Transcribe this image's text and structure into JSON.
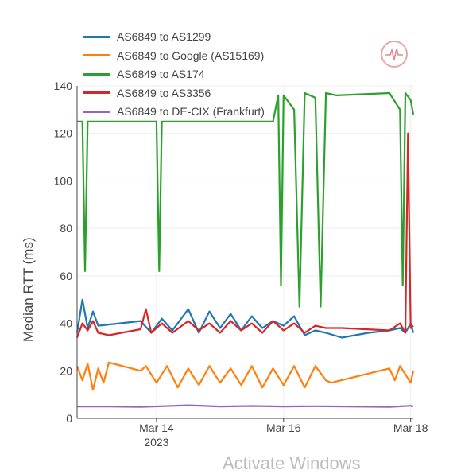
{
  "chart_data": {
    "type": "line",
    "title": "",
    "xlabel": "",
    "ylabel": "Median RTT (ms)",
    "ylim": [
      0,
      140
    ],
    "y_ticks": [
      0,
      20,
      40,
      60,
      80,
      100,
      120,
      140
    ],
    "x_range": [
      "2023-03-12T18:00",
      "2023-03-18T01:00"
    ],
    "x_ticks": [
      {
        "date": "2023-03-14",
        "label": "Mar 14",
        "sublabel": "2023"
      },
      {
        "date": "2023-03-16",
        "label": "Mar 16",
        "sublabel": ""
      },
      {
        "date": "2023-03-18",
        "label": "Mar 18",
        "sublabel": ""
      }
    ],
    "grid": true,
    "legend_position": "top-left",
    "series": [
      {
        "name": "AS6849 to AS1299",
        "color": "#1f77b4",
        "points": [
          [
            "2023-03-12T18:00",
            36
          ],
          [
            "2023-03-12T20:00",
            50
          ],
          [
            "2023-03-12T22:00",
            38
          ],
          [
            "2023-03-13T00:00",
            45
          ],
          [
            "2023-03-13T02:00",
            39
          ],
          [
            "2023-03-13T06:00",
            39.5
          ],
          [
            "2023-03-13T18:00",
            41
          ],
          [
            "2023-03-13T22:00",
            36
          ],
          [
            "2023-03-14T02:00",
            42
          ],
          [
            "2023-03-14T06:00",
            37
          ],
          [
            "2023-03-14T12:00",
            46
          ],
          [
            "2023-03-14T16:00",
            36
          ],
          [
            "2023-03-14T20:00",
            45
          ],
          [
            "2023-03-15T00:00",
            38
          ],
          [
            "2023-03-15T04:00",
            44
          ],
          [
            "2023-03-15T08:00",
            37
          ],
          [
            "2023-03-15T12:00",
            43
          ],
          [
            "2023-03-15T16:00",
            38
          ],
          [
            "2023-03-15T20:00",
            41
          ],
          [
            "2023-03-16T00:00",
            39
          ],
          [
            "2023-03-16T04:00",
            43
          ],
          [
            "2023-03-16T08:00",
            35
          ],
          [
            "2023-03-16T12:00",
            37
          ],
          [
            "2023-03-16T16:00",
            36
          ],
          [
            "2023-03-16T22:00",
            34
          ],
          [
            "2023-03-17T08:00",
            36
          ],
          [
            "2023-03-17T16:00",
            37
          ],
          [
            "2023-03-17T20:00",
            38
          ],
          [
            "2023-03-17T22:00",
            36
          ],
          [
            "2023-03-18T00:00",
            40
          ],
          [
            "2023-03-18T01:00",
            36
          ]
        ]
      },
      {
        "name": "AS6849 to Google (AS15169)",
        "color": "#ff7f0e",
        "points": [
          [
            "2023-03-12T18:00",
            22
          ],
          [
            "2023-03-12T20:00",
            16
          ],
          [
            "2023-03-12T22:00",
            23
          ],
          [
            "2023-03-13T00:00",
            12
          ],
          [
            "2023-03-13T02:00",
            21
          ],
          [
            "2023-03-13T04:00",
            15
          ],
          [
            "2023-03-13T06:00",
            23.5
          ],
          [
            "2023-03-13T18:00",
            20
          ],
          [
            "2023-03-13T20:00",
            22
          ],
          [
            "2023-03-14T00:00",
            15
          ],
          [
            "2023-03-14T04:00",
            22
          ],
          [
            "2023-03-14T08:00",
            13
          ],
          [
            "2023-03-14T12:00",
            21
          ],
          [
            "2023-03-14T16:00",
            14
          ],
          [
            "2023-03-14T20:00",
            22
          ],
          [
            "2023-03-15T00:00",
            15
          ],
          [
            "2023-03-15T04:00",
            21
          ],
          [
            "2023-03-15T08:00",
            14
          ],
          [
            "2023-03-15T12:00",
            22
          ],
          [
            "2023-03-15T16:00",
            13
          ],
          [
            "2023-03-15T20:00",
            21
          ],
          [
            "2023-03-16T00:00",
            14
          ],
          [
            "2023-03-16T04:00",
            22
          ],
          [
            "2023-03-16T08:00",
            13
          ],
          [
            "2023-03-16T12:00",
            22
          ],
          [
            "2023-03-16T16:00",
            16
          ],
          [
            "2023-03-16T18:00",
            15
          ],
          [
            "2023-03-17T16:00",
            21
          ],
          [
            "2023-03-17T18:00",
            16
          ],
          [
            "2023-03-17T20:00",
            22
          ],
          [
            "2023-03-18T00:00",
            15
          ],
          [
            "2023-03-18T01:00",
            20
          ]
        ]
      },
      {
        "name": "AS6849 to AS174",
        "color": "#2ca02c",
        "points": [
          [
            "2023-03-12T18:00",
            125
          ],
          [
            "2023-03-12T20:00",
            125
          ],
          [
            "2023-03-12T21:00",
            62
          ],
          [
            "2023-03-12T22:00",
            125
          ],
          [
            "2023-03-14T00:00",
            125
          ],
          [
            "2023-03-14T01:00",
            62
          ],
          [
            "2023-03-14T02:00",
            125
          ],
          [
            "2023-03-15T20:00",
            125
          ],
          [
            "2023-03-15T22:00",
            136
          ],
          [
            "2023-03-15T23:00",
            56
          ],
          [
            "2023-03-16T00:00",
            136
          ],
          [
            "2023-03-16T04:00",
            130
          ],
          [
            "2023-03-16T06:00",
            47
          ],
          [
            "2023-03-16T08:00",
            137
          ],
          [
            "2023-03-16T12:00",
            135
          ],
          [
            "2023-03-16T14:00",
            47
          ],
          [
            "2023-03-16T16:00",
            137
          ],
          [
            "2023-03-16T20:00",
            136
          ],
          [
            "2023-03-17T16:00",
            137
          ],
          [
            "2023-03-17T20:00",
            130
          ],
          [
            "2023-03-17T21:00",
            56
          ],
          [
            "2023-03-17T22:00",
            137
          ],
          [
            "2023-03-18T00:00",
            134
          ],
          [
            "2023-03-18T01:00",
            128
          ]
        ]
      },
      {
        "name": "AS6849 to AS3356",
        "color": "#d62728",
        "points": [
          [
            "2023-03-12T18:00",
            34
          ],
          [
            "2023-03-12T20:00",
            40
          ],
          [
            "2023-03-12T22:00",
            37
          ],
          [
            "2023-03-13T00:00",
            41
          ],
          [
            "2023-03-13T02:00",
            36
          ],
          [
            "2023-03-13T06:00",
            35
          ],
          [
            "2023-03-13T18:00",
            37.5
          ],
          [
            "2023-03-13T20:00",
            46
          ],
          [
            "2023-03-13T22:00",
            36
          ],
          [
            "2023-03-14T02:00",
            40
          ],
          [
            "2023-03-14T06:00",
            36
          ],
          [
            "2023-03-14T12:00",
            41
          ],
          [
            "2023-03-14T16:00",
            37
          ],
          [
            "2023-03-14T20:00",
            40
          ],
          [
            "2023-03-15T00:00",
            36
          ],
          [
            "2023-03-15T04:00",
            41
          ],
          [
            "2023-03-15T08:00",
            37
          ],
          [
            "2023-03-15T12:00",
            40
          ],
          [
            "2023-03-15T16:00",
            36
          ],
          [
            "2023-03-15T20:00",
            41
          ],
          [
            "2023-03-16T00:00",
            37
          ],
          [
            "2023-03-16T04:00",
            40
          ],
          [
            "2023-03-16T08:00",
            36
          ],
          [
            "2023-03-16T12:00",
            39
          ],
          [
            "2023-03-16T16:00",
            38
          ],
          [
            "2023-03-16T22:00",
            38
          ],
          [
            "2023-03-17T16:00",
            37
          ],
          [
            "2023-03-17T20:00",
            40
          ],
          [
            "2023-03-17T22:00",
            36
          ],
          [
            "2023-03-17T23:00",
            120
          ],
          [
            "2023-03-18T00:00",
            38
          ],
          [
            "2023-03-18T01:00",
            39
          ]
        ]
      },
      {
        "name": "AS6849 to DE-CIX (Frankfurt)",
        "color": "#9467bd",
        "points": [
          [
            "2023-03-12T18:00",
            5
          ],
          [
            "2023-03-13T06:00",
            5
          ],
          [
            "2023-03-13T18:00",
            4.8
          ],
          [
            "2023-03-14T12:00",
            5.5
          ],
          [
            "2023-03-15T00:00",
            5
          ],
          [
            "2023-03-15T12:00",
            5.2
          ],
          [
            "2023-03-16T00:00",
            5
          ],
          [
            "2023-03-16T12:00",
            5.1
          ],
          [
            "2023-03-17T00:00",
            5
          ],
          [
            "2023-03-17T16:00",
            4.8
          ],
          [
            "2023-03-18T00:00",
            5.3
          ],
          [
            "2023-03-18T01:00",
            5
          ]
        ]
      }
    ]
  },
  "ui": {
    "watermark": "Activate Windows"
  }
}
